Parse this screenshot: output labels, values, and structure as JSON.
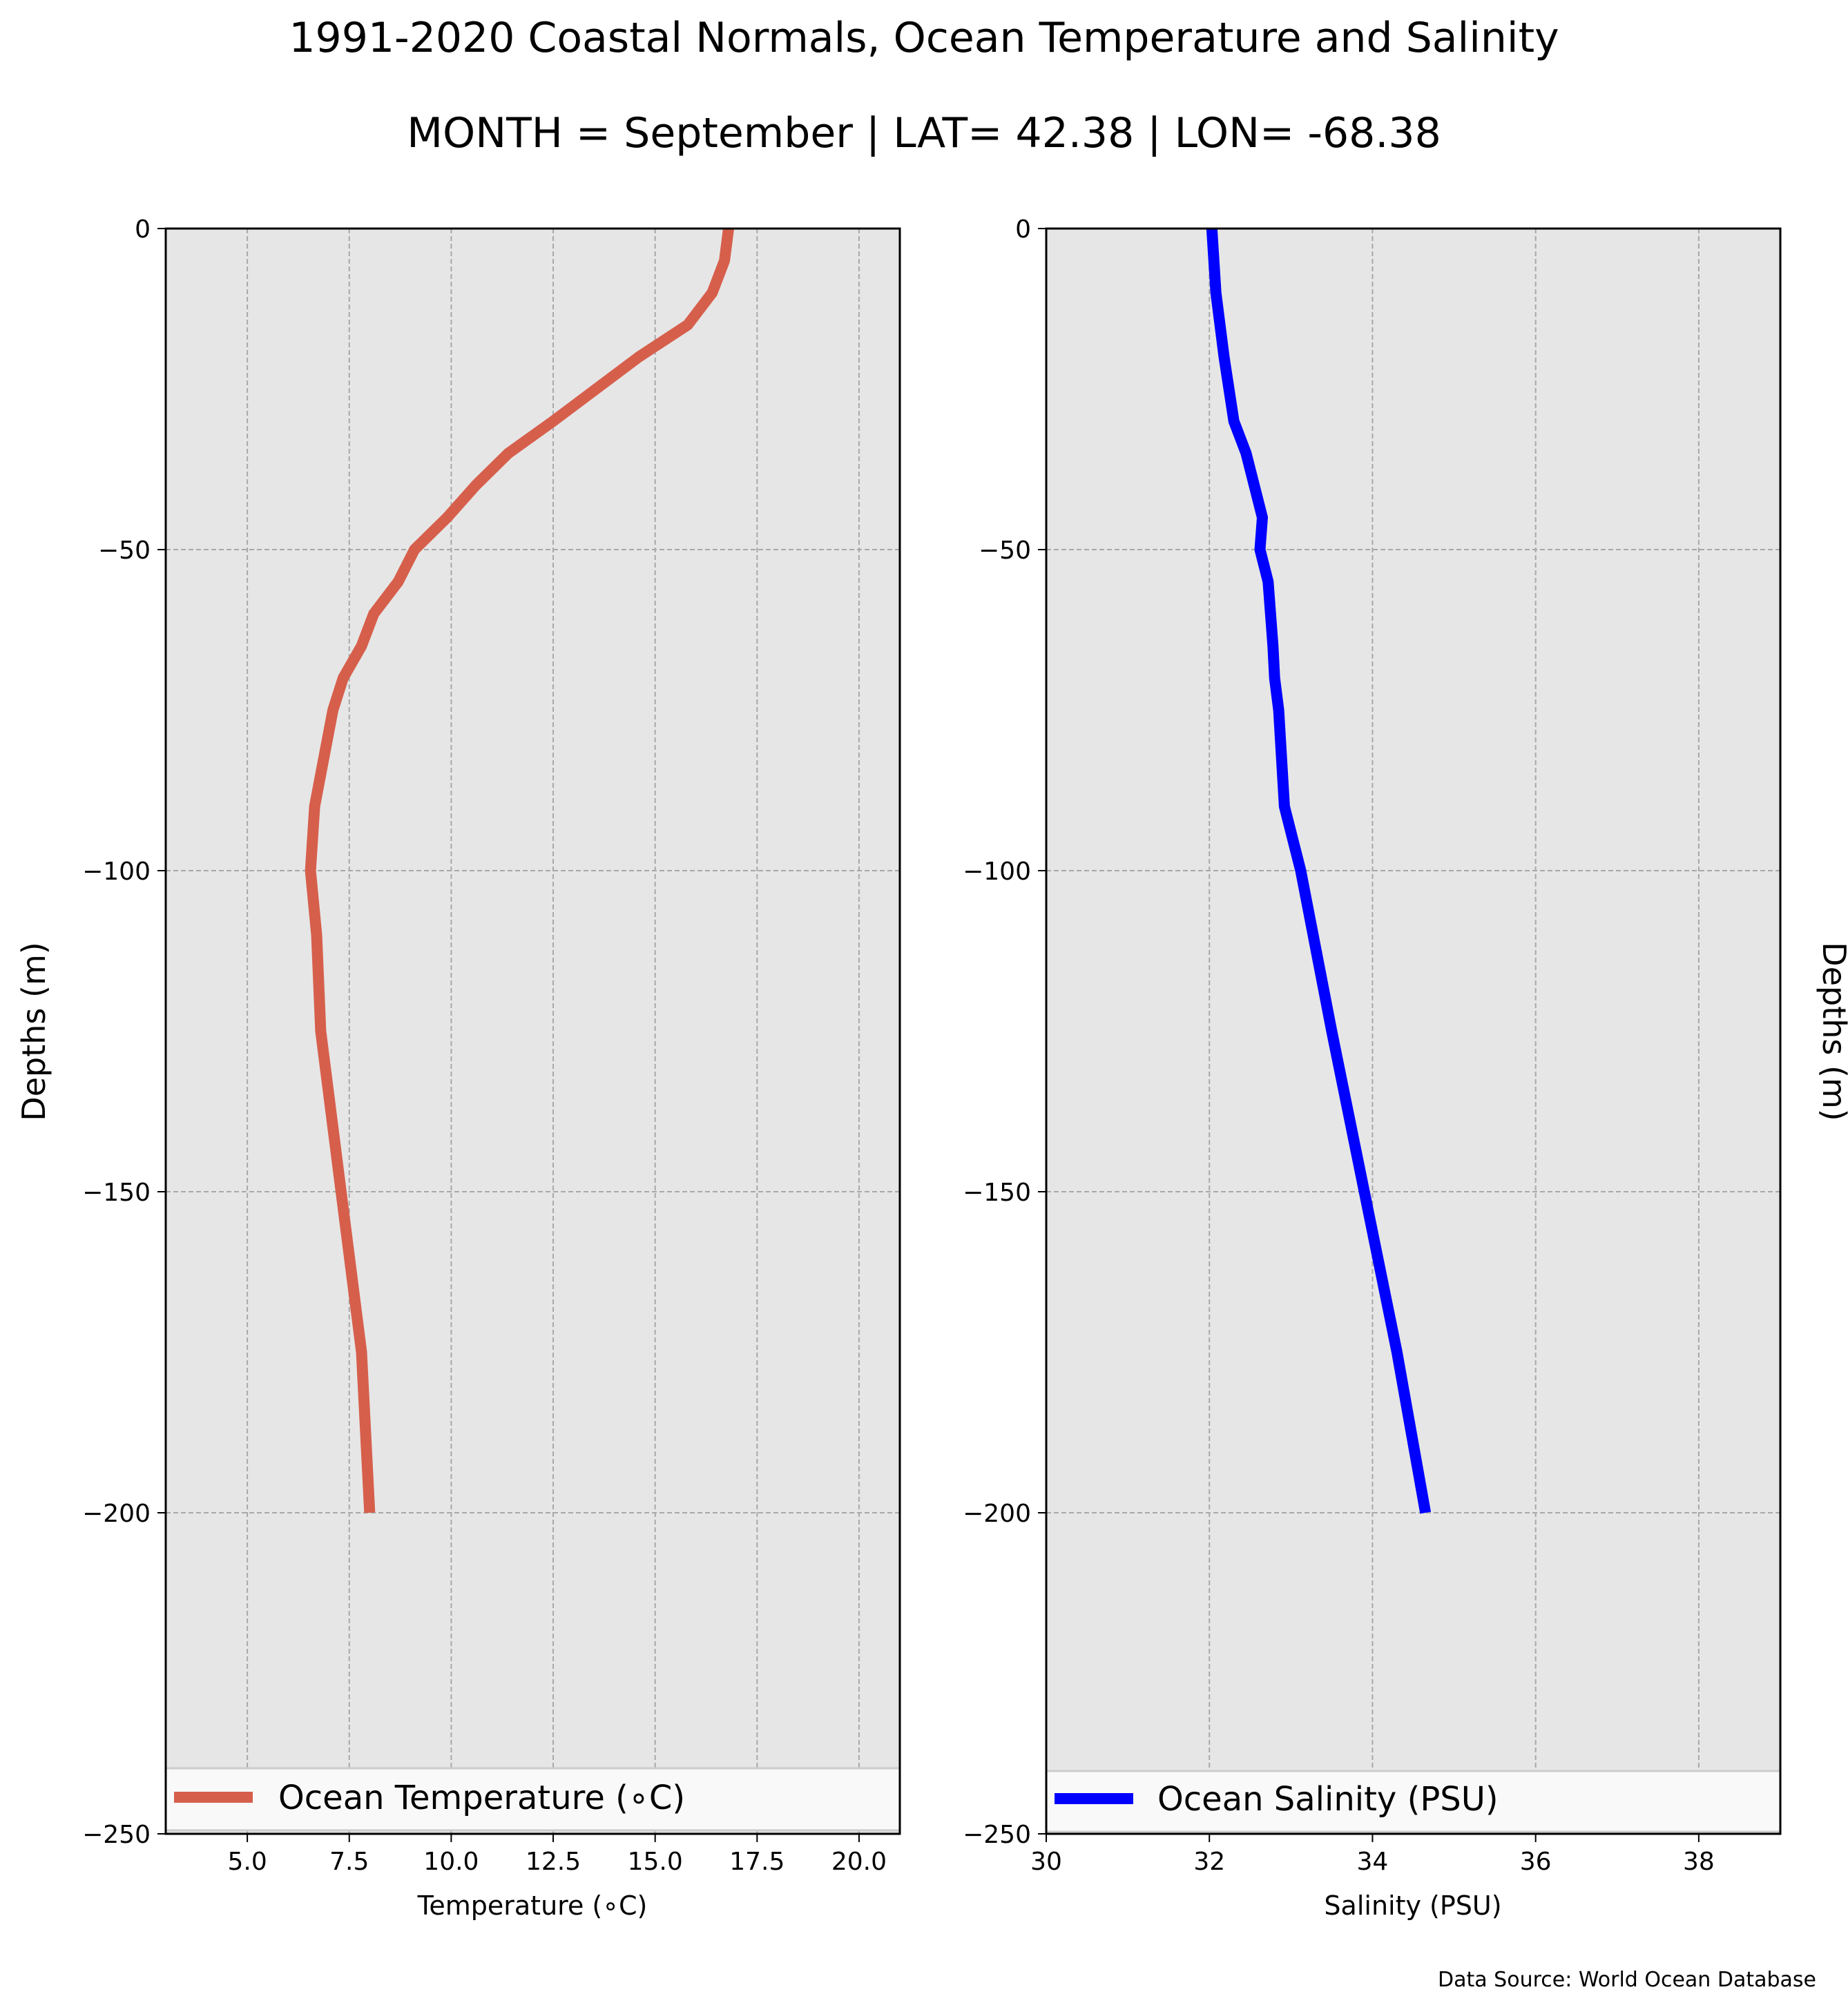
{
  "title": "1991-2020 Coastal Normals, Ocean Temperature and Salinity",
  "subtitle": "MONTH = September | LAT= 42.38 | LON= -68.38",
  "source": "Data Source: World Ocean Database",
  "colors": {
    "plot_bg": "#e6e6e6",
    "grid": "#a8a8a8",
    "temperature": "#d65f4c",
    "salinity": "#0000ff",
    "legend_bg": "#f9f9f9"
  },
  "chart_data": [
    {
      "type": "line",
      "xlabel": "Temperature (∘C)",
      "ylabel": "Depths (m)",
      "xlim": [
        3,
        21
      ],
      "ylim": [
        -250,
        0
      ],
      "xticks": [
        5.0,
        7.5,
        10.0,
        12.5,
        15.0,
        17.5,
        20.0
      ],
      "xtick_labels": [
        "5.0",
        "7.5",
        "10.0",
        "12.5",
        "15.0",
        "17.5",
        "20.0"
      ],
      "yticks": [
        0,
        -50,
        -100,
        -150,
        -200,
        -250
      ],
      "ytick_labels": [
        "0",
        "−50",
        "−100",
        "−150",
        "−200",
        "−250"
      ],
      "grid": true,
      "legend": "bottom",
      "series": [
        {
          "name": "Ocean Temperature (∘C)",
          "color": "#d65f4c",
          "x": [
            16.8,
            16.7,
            16.4,
            15.8,
            14.6,
            12.5,
            11.4,
            10.6,
            9.9,
            9.1,
            8.7,
            8.1,
            7.8,
            7.35,
            7.1,
            6.8,
            6.65,
            6.55,
            6.7,
            6.8,
            7.3,
            7.8,
            8.0
          ],
          "y": [
            0,
            -5,
            -10,
            -15,
            -20,
            -30,
            -35,
            -40,
            -45,
            -50,
            -55,
            -60,
            -65,
            -70,
            -75,
            -85,
            -90,
            -100,
            -110,
            -125,
            -150,
            -175,
            -200
          ]
        }
      ]
    },
    {
      "type": "line",
      "xlabel": "Salinity (PSU)",
      "ylabel": "Depths (m)",
      "xlim": [
        30,
        39
      ],
      "ylim": [
        -250,
        0
      ],
      "xticks": [
        30,
        32,
        34,
        36,
        38
      ],
      "xtick_labels": [
        "30",
        "32",
        "34",
        "36",
        "38"
      ],
      "yticks": [
        0,
        -50,
        -100,
        -150,
        -200,
        -250
      ],
      "ytick_labels": [
        "0",
        "−50",
        "−100",
        "−150",
        "−200",
        "−250"
      ],
      "grid": true,
      "legend": "bottom",
      "series": [
        {
          "name": "Ocean Salinity (PSU)",
          "color": "#0000ff",
          "x": [
            32.03,
            32.08,
            32.18,
            32.3,
            32.45,
            32.65,
            32.62,
            32.72,
            32.78,
            32.8,
            32.85,
            32.92,
            33.12,
            33.5,
            33.9,
            34.3,
            34.65
          ],
          "y": [
            0,
            -10,
            -20,
            -30,
            -35,
            -45,
            -50,
            -55,
            -65,
            -70,
            -75,
            -90,
            -100,
            -125,
            -150,
            -175,
            -200
          ]
        }
      ]
    }
  ]
}
